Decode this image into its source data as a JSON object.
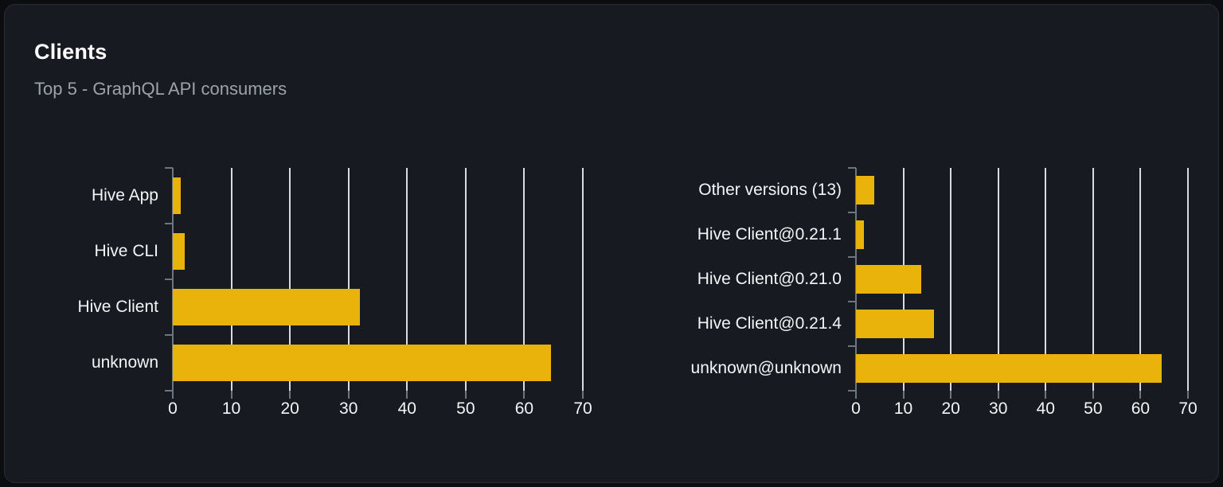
{
  "card": {
    "title": "Clients",
    "subtitle": "Top 5 - GraphQL API consumers"
  },
  "colors": {
    "bar": "#e9b30b",
    "gridline": "#d8dce2",
    "axis": "#6e7580",
    "label_text": "#f4f5f6",
    "card_background": "#171a20",
    "page_background": "#0c0d10",
    "subtitle_text": "#9ba3ad"
  },
  "chart_data": [
    {
      "type": "bar",
      "orientation": "horizontal",
      "title": "Top 5 GraphQL API consumers by client name",
      "categories": [
        "Hive App",
        "Hive CLI",
        "Hive Client",
        "unknown"
      ],
      "values": [
        1.3,
        2,
        32,
        64.5
      ],
      "xlim": [
        0,
        70
      ],
      "xticks": [
        0,
        10,
        20,
        30,
        40,
        50,
        60,
        70
      ],
      "grid": true,
      "legend": false
    },
    {
      "type": "bar",
      "orientation": "horizontal",
      "title": "Top 5 GraphQL API consumers by client version",
      "categories": [
        "Other versions (13)",
        "Hive Client@0.21.1",
        "Hive Client@0.21.0",
        "Hive Client@0.21.4",
        "unknown@unknown"
      ],
      "values": [
        3.9,
        1.7,
        13.7,
        16.4,
        64.5
      ],
      "xlim": [
        0,
        70
      ],
      "xticks": [
        0,
        10,
        20,
        30,
        40,
        50,
        60,
        70
      ],
      "grid": true,
      "legend": false
    }
  ]
}
